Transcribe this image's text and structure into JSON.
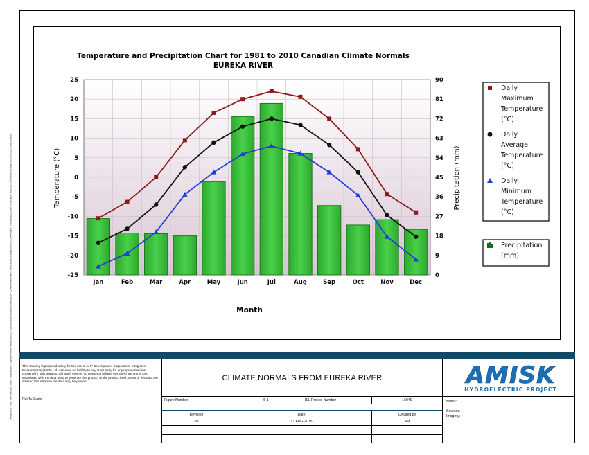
{
  "chart_data": {
    "type": "bar+line",
    "title": "Temperature and Precipitation Chart for 1981 to 2010 Canadian Climate Normals",
    "subtitle": "EUREKA RIVER",
    "xlabel": "Month",
    "ylabel_left": "Temperature (°C)",
    "ylabel_right": "Precipitation (mm)",
    "categories": [
      "Jan",
      "Feb",
      "Mar",
      "Apr",
      "May",
      "Jun",
      "Jul",
      "Aug",
      "Sep",
      "Oct",
      "Nov",
      "Dec"
    ],
    "ylim_left": [
      -25,
      25
    ],
    "yticks_left": [
      "25",
      "20",
      "15",
      "10",
      "5",
      "0",
      "-5",
      "-10",
      "-15",
      "-20",
      "-25"
    ],
    "ylim_right": [
      0,
      90
    ],
    "yticks_right": [
      "90",
      "81",
      "72",
      "63",
      "54",
      "45",
      "36",
      "27",
      "18",
      "9",
      "0"
    ],
    "series": [
      {
        "name": "Daily Maximum Temperature (°C)",
        "kind": "line",
        "axis": "left",
        "marker": "square",
        "color": "#8b1a1a",
        "values": [
          -10.5,
          -6.3,
          0.0,
          9.5,
          16.5,
          20.0,
          22.0,
          20.6,
          15.0,
          7.2,
          -4.3,
          -9.0
        ]
      },
      {
        "name": "Daily Average Temperature (°C)",
        "kind": "line",
        "axis": "left",
        "marker": "circle",
        "color": "#111111",
        "values": [
          -16.8,
          -13.2,
          -7.0,
          2.6,
          8.9,
          13.0,
          15.0,
          13.4,
          8.3,
          1.3,
          -9.7,
          -15.2
        ]
      },
      {
        "name": "Daily Minimum Temperature (°C)",
        "kind": "line",
        "axis": "left",
        "marker": "triangle",
        "color": "#1f3fd6",
        "values": [
          -22.8,
          -19.5,
          -14.0,
          -4.4,
          1.3,
          6.0,
          8.0,
          6.1,
          1.3,
          -4.6,
          -15.2,
          -21.0
        ]
      },
      {
        "name": "Precipitation (mm)",
        "kind": "bar",
        "axis": "right",
        "color": "#3cc43c",
        "values": [
          26.0,
          19.3,
          19.0,
          18.0,
          43.0,
          73.0,
          79.0,
          56.0,
          32.0,
          23.0,
          25.5,
          21.0
        ]
      }
    ],
    "legend": [
      {
        "marker": "square",
        "color": "#8b1a1a",
        "lines": [
          "Daily",
          "Maximum",
          "Temperature",
          "(°C)"
        ]
      },
      {
        "marker": "circle",
        "color": "#111111",
        "lines": [
          "Daily",
          "Average",
          "Temperature",
          "(°C)"
        ]
      },
      {
        "marker": "triangle",
        "color": "#1f3fd6",
        "lines": [
          "Daily",
          "Minimum",
          "Temperature",
          "(°C)"
        ]
      },
      {
        "marker": "bar",
        "color": "#1d6b1d",
        "lines": [
          "Precipitation",
          "(mm)"
        ]
      }
    ],
    "grid": true,
    "legend_position": "right"
  },
  "sidebar_path": "Document Path: \\\\ Projects\\16049 - Buckland Capital\\Amisk Hydroelectric\\GeospatialProducts\\Maps\\00 - Overview\\Project Description Maps\\00-1552-Amisk\\PDS\\figure5-1\\00-20160809 a00-1552-AmiskPDSfigure5-1\\00-20160809.mxd",
  "title_block": {
    "disclaimer": "This drawing is prepared solely for the use of AHP Development Corporation. Integrated Environments (2006) Ltd. assumes no liability to any other party for any representations contained in this drawing. Although there is no reason to believe that there are any errors associated with the data used to generate this product or the product itself, users of this data are advised that errors in the data may be present.",
    "not_to_scale": "Not To Scale",
    "drawing_title": "CLIMATE NORMALS FROM EUREKA RIVER",
    "figure_number_label": "Figure Number",
    "figure_number": "5-1",
    "project_number_label": "IEL Project Number",
    "project_number": "16049",
    "revision_label": "Revision",
    "date_label": "Date",
    "created_by_label": "Created by",
    "revision": "00",
    "date": "13 AUG 2015",
    "created_by": "AM",
    "notes_label": "Notes:",
    "sources_label": "Sources:",
    "imagery_label": "Imagery:",
    "logo_main": "AMISK",
    "logo_sub": "HYDROELECTRIC PROJECT",
    "logo_color": "#1a6fb5"
  }
}
